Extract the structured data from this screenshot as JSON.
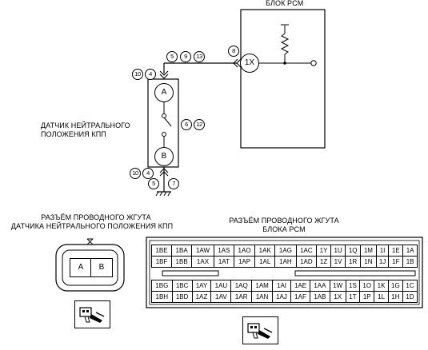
{
  "pcm": {
    "title": "БЛОК PCM",
    "terminal": "1X"
  },
  "sensor": {
    "title_line1": "ДАТЧИК НЕЙТРАЛЬНОГО",
    "title_line2": "ПОЛОЖЕНИЯ КПП",
    "terminal_a": "A",
    "terminal_b": "B"
  },
  "refs": {
    "r8": "8",
    "r5a": "5",
    "r9": "9",
    "r13": "13",
    "r10a": "10",
    "r4a": "4",
    "r6": "6",
    "r12": "12",
    "r10b": "10",
    "r4b": "4",
    "r5b": "5",
    "r7": "7"
  },
  "sensor_connector": {
    "title_line1": "РАЗЪЁМ ПРОВОДНОГО ЖГУТА",
    "title_line2": "ДАТЧИКА НЕЙТРАЛЬНОГО  ПОЛОЖЕНИЯ КПП",
    "pins": [
      "A",
      "B"
    ]
  },
  "pcm_connector": {
    "title_line1": "РАЗЪЁМ ПРОВОДНОГО ЖГУТА",
    "title_line2": "БЛОКА PCM",
    "upper_rows": [
      [
        "1BE",
        "1BA",
        "1AW",
        "1AS",
        "1AO",
        "1AK",
        "1AG",
        "1AC",
        "1Y",
        "1U",
        "1Q",
        "1M",
        "1I",
        "1E",
        "1A"
      ],
      [
        "1BF",
        "1BB",
        "1AX",
        "1AT",
        "1AP",
        "1AL",
        "1AH",
        "1AD",
        "1Z",
        "1V",
        "1R",
        "1N",
        "1J",
        "1F",
        "1B"
      ]
    ],
    "lower_rows": [
      [
        "1BG",
        "1BC",
        "1AY",
        "1AU",
        "1AQ",
        "1AM",
        "1AI",
        "1AE",
        "1AA",
        "1W",
        "1S",
        "1O",
        "1K",
        "1G",
        "1C"
      ],
      [
        "1BH",
        "1BD",
        "1AZ",
        "1AV",
        "1AR",
        "1AN",
        "1AJ",
        "1AF",
        "1AB",
        "1X",
        "1T",
        "1P",
        "1L",
        "1H",
        "1D"
      ]
    ]
  }
}
